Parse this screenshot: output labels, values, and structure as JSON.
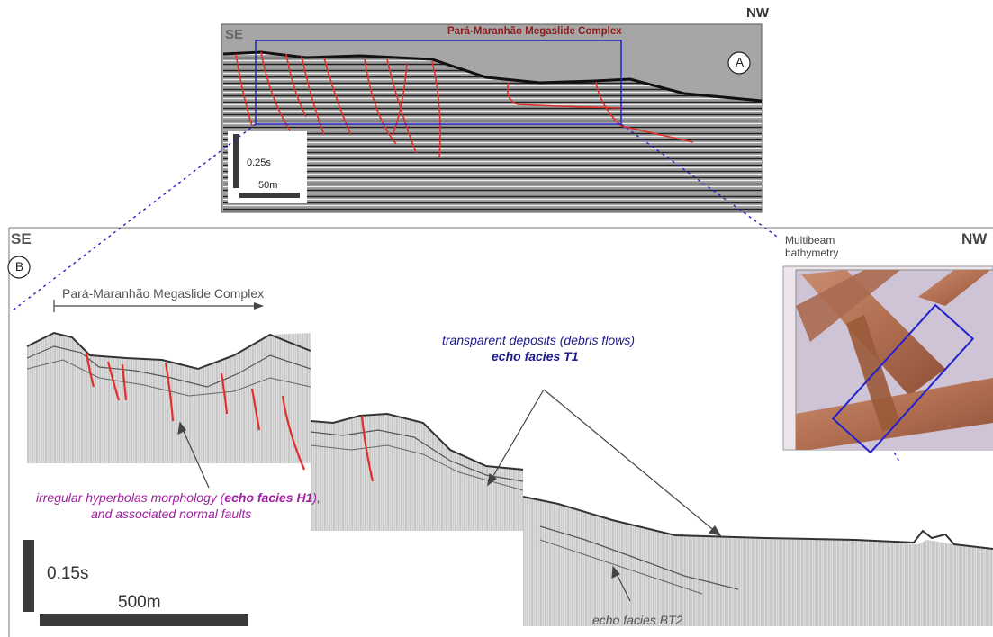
{
  "panel_a": {
    "orientation_left": "SE",
    "orientation_right": "NW",
    "title": "Pará-Maranhão Megaslide Complex",
    "panel_letter": "A",
    "scale_vertical": "0.25s",
    "scale_horizontal": "50m"
  },
  "panel_b": {
    "orientation_left": "SE",
    "orientation_right": "NW",
    "panel_letter": "B",
    "complex_label": "Pará-Maranhão Megaslide Complex",
    "transparent_text": "transparent deposits (debris flows)",
    "transparent_facies": "echo facies T1",
    "hyperbola_part1": "irregular hyperbolas morphology (",
    "hyperbola_facies": "echo facies H1",
    "hyperbola_part2": "),",
    "hyperbola_line2": "and associated normal faults",
    "bt2_label": "echo facies BT2",
    "scale_vertical": "0.15s",
    "scale_horizontal": "500m"
  },
  "inset": {
    "title_line1": "Multibeam",
    "title_line2": "bathymetry"
  },
  "colors": {
    "fault_red": "#e0302a",
    "box_blue": "#2222cc",
    "title_darkred": "#8b1a1a",
    "purple": "#a020a0",
    "navy": "#1a1a8c",
    "scale_dark": "#3a3a3a"
  }
}
